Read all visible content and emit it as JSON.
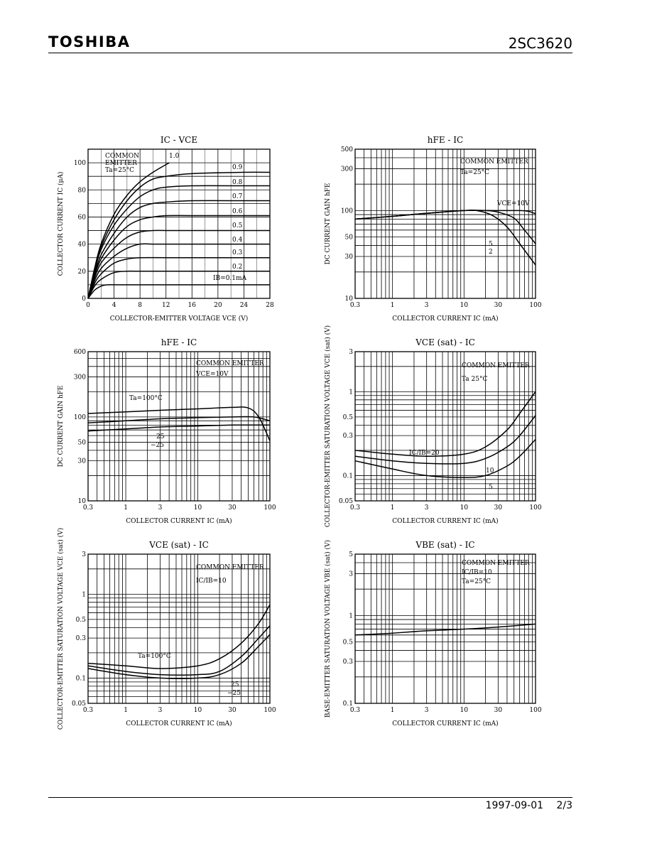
{
  "header": {
    "brand": "TOSHIBA",
    "part_number": "2SC3620"
  },
  "footer": {
    "date": "1997-09-01",
    "page": "2/3"
  },
  "chart_data": [
    {
      "type": "line",
      "title": "IC - VCE",
      "xlabel": "COLLECTOR-EMITTER VOLTAGE VCE (V)",
      "ylabel": "COLLECTOR CURRENT IC (μA)",
      "xscale": "linear",
      "yscale": "linear",
      "xlim": [
        0,
        28
      ],
      "ylim": [
        0,
        110
      ],
      "xticks": [
        0,
        4,
        8,
        12,
        16,
        20,
        24,
        28
      ],
      "yticks": [
        0,
        20,
        40,
        60,
        80,
        100
      ],
      "annotations": [
        "COMMON",
        "EMITTER",
        "Ta=25°C"
      ],
      "series": [
        {
          "name": "1.0",
          "x": [
            0,
            1,
            2,
            4,
            6,
            8,
            10,
            12.5
          ],
          "y": [
            0,
            22,
            40,
            62,
            76,
            86,
            93,
            100
          ]
        },
        {
          "name": "0.9",
          "x": [
            0,
            1,
            2,
            4,
            6,
            8,
            10,
            12,
            16,
            24,
            28
          ],
          "y": [
            0,
            21,
            38,
            58,
            72,
            82,
            88,
            90,
            92,
            93,
            93
          ]
        },
        {
          "name": "0.8",
          "x": [
            0,
            1,
            2,
            4,
            6,
            8,
            10,
            12,
            16,
            24,
            28
          ],
          "y": [
            0,
            20,
            36,
            54,
            66,
            75,
            80,
            82,
            83,
            83,
            83
          ]
        },
        {
          "name": "0.7",
          "x": [
            0,
            1,
            2,
            4,
            6,
            8,
            10,
            12,
            16,
            24,
            28
          ],
          "y": [
            0,
            18,
            32,
            48,
            60,
            67,
            70,
            71,
            72,
            72,
            72
          ]
        },
        {
          "name": "0.6",
          "x": [
            0,
            1,
            2,
            4,
            6,
            8,
            10,
            12,
            16,
            24,
            28
          ],
          "y": [
            0,
            17,
            29,
            43,
            53,
            58,
            60,
            61,
            61,
            61,
            61
          ]
        },
        {
          "name": "0.5",
          "x": [
            0,
            1,
            2,
            4,
            6,
            8,
            10,
            12,
            16,
            24,
            28
          ],
          "y": [
            0,
            15,
            26,
            37,
            45,
            49,
            50,
            50,
            50,
            50,
            50
          ]
        },
        {
          "name": "0.4",
          "x": [
            0,
            1,
            2,
            4,
            6,
            8,
            10,
            12,
            16,
            24,
            28
          ],
          "y": [
            0,
            13,
            22,
            31,
            37,
            40,
            40,
            40,
            40,
            40,
            40
          ]
        },
        {
          "name": "0.3",
          "x": [
            0,
            1,
            2,
            4,
            6,
            8,
            12,
            16,
            24,
            28
          ],
          "y": [
            0,
            11,
            18,
            26,
            29,
            30,
            30,
            30,
            30,
            30
          ]
        },
        {
          "name": "0.2",
          "x": [
            0,
            1,
            2,
            4,
            6,
            8,
            12,
            16,
            24,
            28
          ],
          "y": [
            0,
            9,
            14,
            19,
            20,
            20,
            20,
            20,
            20,
            20
          ]
        },
        {
          "name": "IB=0.1mA",
          "x": [
            0,
            1,
            2,
            3,
            5,
            8,
            12,
            16,
            24,
            28
          ],
          "y": [
            0,
            6,
            9,
            10,
            10,
            10,
            10,
            10,
            10,
            10
          ]
        }
      ]
    },
    {
      "type": "line",
      "title": "hFE - IC",
      "xlabel": "COLLECTOR CURRENT IC (mA)",
      "ylabel": "DC CURRENT GAIN hFE",
      "xscale": "log",
      "yscale": "log",
      "xlim": [
        0.3,
        100
      ],
      "ylim": [
        10,
        500
      ],
      "xticks": [
        "0.3",
        "1",
        "3",
        "10",
        "30",
        "100"
      ],
      "yticks": [
        "10",
        "30",
        "50",
        "100",
        "300",
        "500"
      ],
      "annotations": [
        "COMMON EMITTER",
        "Ta=25°C",
        "VCE=10V"
      ],
      "series": [
        {
          "name": "VCE=10V",
          "x": [
            0.3,
            1,
            3,
            10,
            30,
            60,
            80,
            100
          ],
          "y": [
            80,
            86,
            93,
            100,
            100,
            100,
            98,
            92
          ]
        },
        {
          "name": "5",
          "x": [
            0.3,
            1,
            3,
            10,
            20,
            30,
            50,
            70,
            100
          ],
          "y": [
            80,
            86,
            93,
            100,
            100,
            96,
            82,
            60,
            42
          ]
        },
        {
          "name": "2",
          "x": [
            0.3,
            1,
            3,
            10,
            15,
            25,
            40,
            60,
            100
          ],
          "y": [
            80,
            86,
            93,
            100,
            100,
            88,
            65,
            42,
            24
          ]
        }
      ]
    },
    {
      "type": "line",
      "title": "hFE - IC",
      "xlabel": "COLLECTOR CURRENT IC (mA)",
      "ylabel": "DC CURRENT GAIN hFE",
      "xscale": "log",
      "yscale": "log",
      "xlim": [
        0.3,
        100
      ],
      "ylim": [
        10,
        600
      ],
      "xticks": [
        "0.3",
        "1",
        "3",
        "10",
        "30",
        "100"
      ],
      "yticks": [
        "10",
        "30",
        "50",
        "100",
        "300",
        "600"
      ],
      "annotations": [
        "COMMON EMITTER",
        "VCE=10V"
      ],
      "series": [
        {
          "name": "Ta=100°C",
          "x": [
            0.3,
            1,
            3,
            10,
            30,
            50,
            70,
            100
          ],
          "y": [
            110,
            115,
            120,
            125,
            130,
            128,
            100,
            52
          ]
        },
        {
          "name": "25",
          "x": [
            0.3,
            1,
            3,
            10,
            30,
            60,
            100
          ],
          "y": [
            85,
            90,
            95,
            98,
            100,
            100,
            90
          ]
        },
        {
          "name": "−25",
          "x": [
            0.3,
            1,
            3,
            10,
            30,
            60,
            100
          ],
          "y": [
            68,
            72,
            76,
            78,
            80,
            80,
            80
          ]
        }
      ]
    },
    {
      "type": "line",
      "title": "VCE (sat) - IC",
      "xlabel": "COLLECTOR CURRENT IC (mA)",
      "ylabel": "COLLECTOR-EMITTER SATURATION VOLTAGE VCE (sat) (V)",
      "xscale": "log",
      "yscale": "log",
      "xlim": [
        0.3,
        100
      ],
      "ylim": [
        0.05,
        3
      ],
      "xticks": [
        "0.3",
        "1",
        "3",
        "10",
        "30",
        "100"
      ],
      "yticks": [
        "0.05",
        "0.1",
        "0.3",
        "0.5",
        "1",
        "3"
      ],
      "annotations": [
        "COMMON EMITTER",
        "Ta 25°C"
      ],
      "series": [
        {
          "name": "IC/IB=20",
          "x": [
            0.3,
            1,
            3,
            10,
            20,
            40,
            60,
            100
          ],
          "y": [
            0.2,
            0.18,
            0.17,
            0.18,
            0.22,
            0.35,
            0.55,
            1.0
          ]
        },
        {
          "name": "10",
          "x": [
            0.3,
            1,
            3,
            10,
            20,
            40,
            60,
            100
          ],
          "y": [
            0.17,
            0.15,
            0.14,
            0.14,
            0.16,
            0.22,
            0.3,
            0.52
          ]
        },
        {
          "name": "5",
          "x": [
            0.3,
            1,
            3,
            10,
            20,
            40,
            60,
            100
          ],
          "y": [
            0.15,
            0.12,
            0.1,
            0.095,
            0.1,
            0.13,
            0.17,
            0.27
          ]
        }
      ]
    },
    {
      "type": "line",
      "title": "VCE (sat) - IC",
      "xlabel": "COLLECTOR CURRENT IC (mA)",
      "ylabel": "COLLECTOR-EMITTER SATURATION VOLTAGE VCE (sat) (V)",
      "xscale": "log",
      "yscale": "log",
      "xlim": [
        0.3,
        100
      ],
      "ylim": [
        0.05,
        3
      ],
      "xticks": [
        "0.3",
        "1",
        "3",
        "10",
        "30",
        "100"
      ],
      "yticks": [
        "0.05",
        "0.1",
        "0.3",
        "0.5",
        "1",
        "3"
      ],
      "annotations": [
        "COMMON EMITTER",
        "IC/IB=10"
      ],
      "series": [
        {
          "name": "Ta=100°C",
          "x": [
            0.3,
            1,
            3,
            10,
            20,
            40,
            70,
            100
          ],
          "y": [
            0.15,
            0.14,
            0.13,
            0.14,
            0.17,
            0.26,
            0.45,
            0.75
          ]
        },
        {
          "name": "25",
          "x": [
            0.3,
            1,
            3,
            10,
            20,
            40,
            70,
            100
          ],
          "y": [
            0.14,
            0.12,
            0.11,
            0.11,
            0.12,
            0.18,
            0.3,
            0.42
          ]
        },
        {
          "name": "−25",
          "x": [
            0.3,
            1,
            3,
            10,
            20,
            40,
            70,
            100
          ],
          "y": [
            0.13,
            0.11,
            0.1,
            0.1,
            0.11,
            0.15,
            0.24,
            0.33
          ]
        }
      ]
    },
    {
      "type": "line",
      "title": "VBE (sat) - IC",
      "xlabel": "COLLECTOR CURRENT IC (mA)",
      "ylabel": "BASE-EMITTER SATURATION VOLTAGE VBE (sat) (V)",
      "xscale": "log",
      "yscale": "log",
      "xlim": [
        0.3,
        100
      ],
      "ylim": [
        0.1,
        5
      ],
      "xticks": [
        "0.3",
        "1",
        "3",
        "10",
        "30",
        "100"
      ],
      "yticks": [
        "0.1",
        "0.3",
        "0.5",
        "1",
        "3",
        "5"
      ],
      "annotations": [
        "COMMON EMITTER",
        "IC/IB=10",
        "Ta=25°C"
      ],
      "series": [
        {
          "name": "VBE(sat)",
          "x": [
            0.3,
            1,
            3,
            10,
            30,
            100
          ],
          "y": [
            0.6,
            0.63,
            0.67,
            0.7,
            0.74,
            0.8
          ]
        }
      ]
    }
  ]
}
